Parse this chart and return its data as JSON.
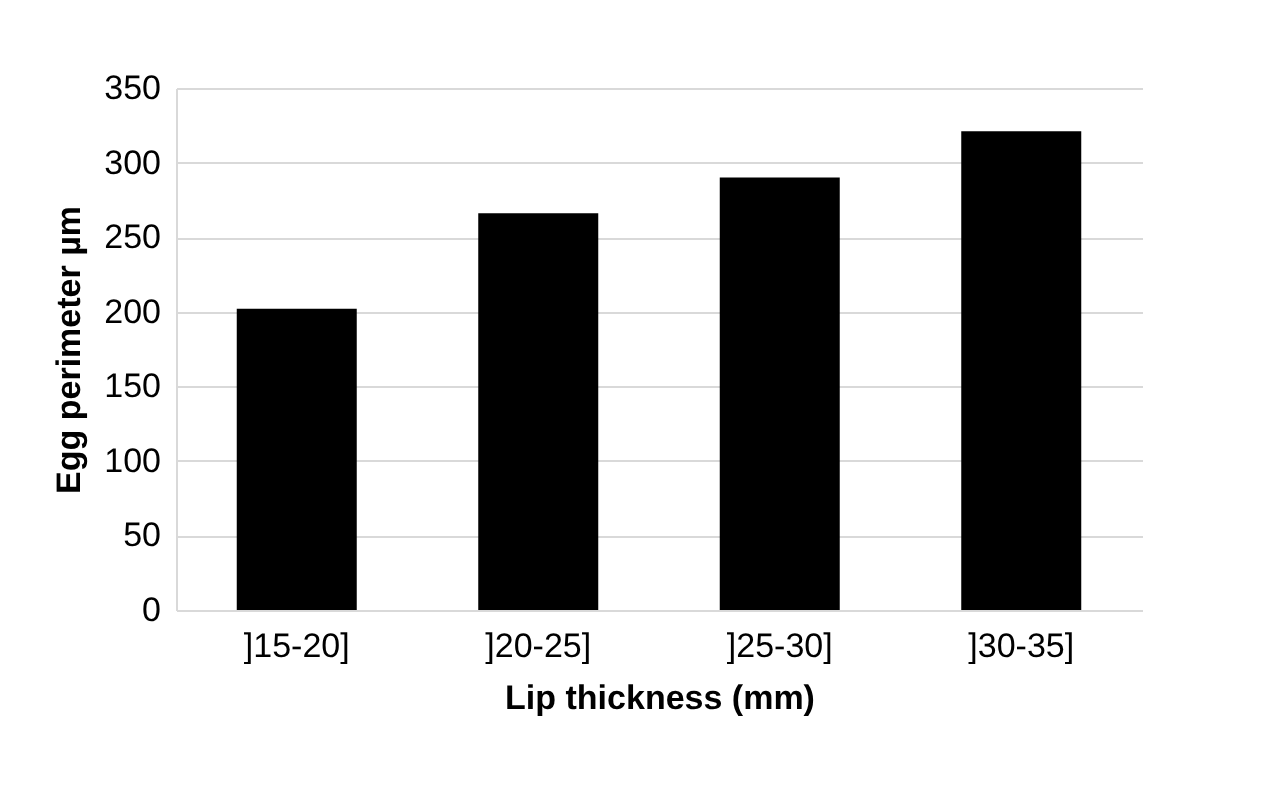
{
  "chart_data": {
    "type": "bar",
    "xlabel": "Lip thickness (mm)",
    "ylabel": "Egg perimeter µm",
    "categories": [
      "]15-20]",
      "]20-25]",
      "]25-30]",
      "]30-35]"
    ],
    "values": [
      202,
      266,
      290,
      321
    ],
    "color": "#000000",
    "ylim": [
      0,
      350
    ],
    "yticks": [
      0,
      50,
      100,
      150,
      200,
      250,
      300,
      350
    ],
    "grid": "y"
  }
}
